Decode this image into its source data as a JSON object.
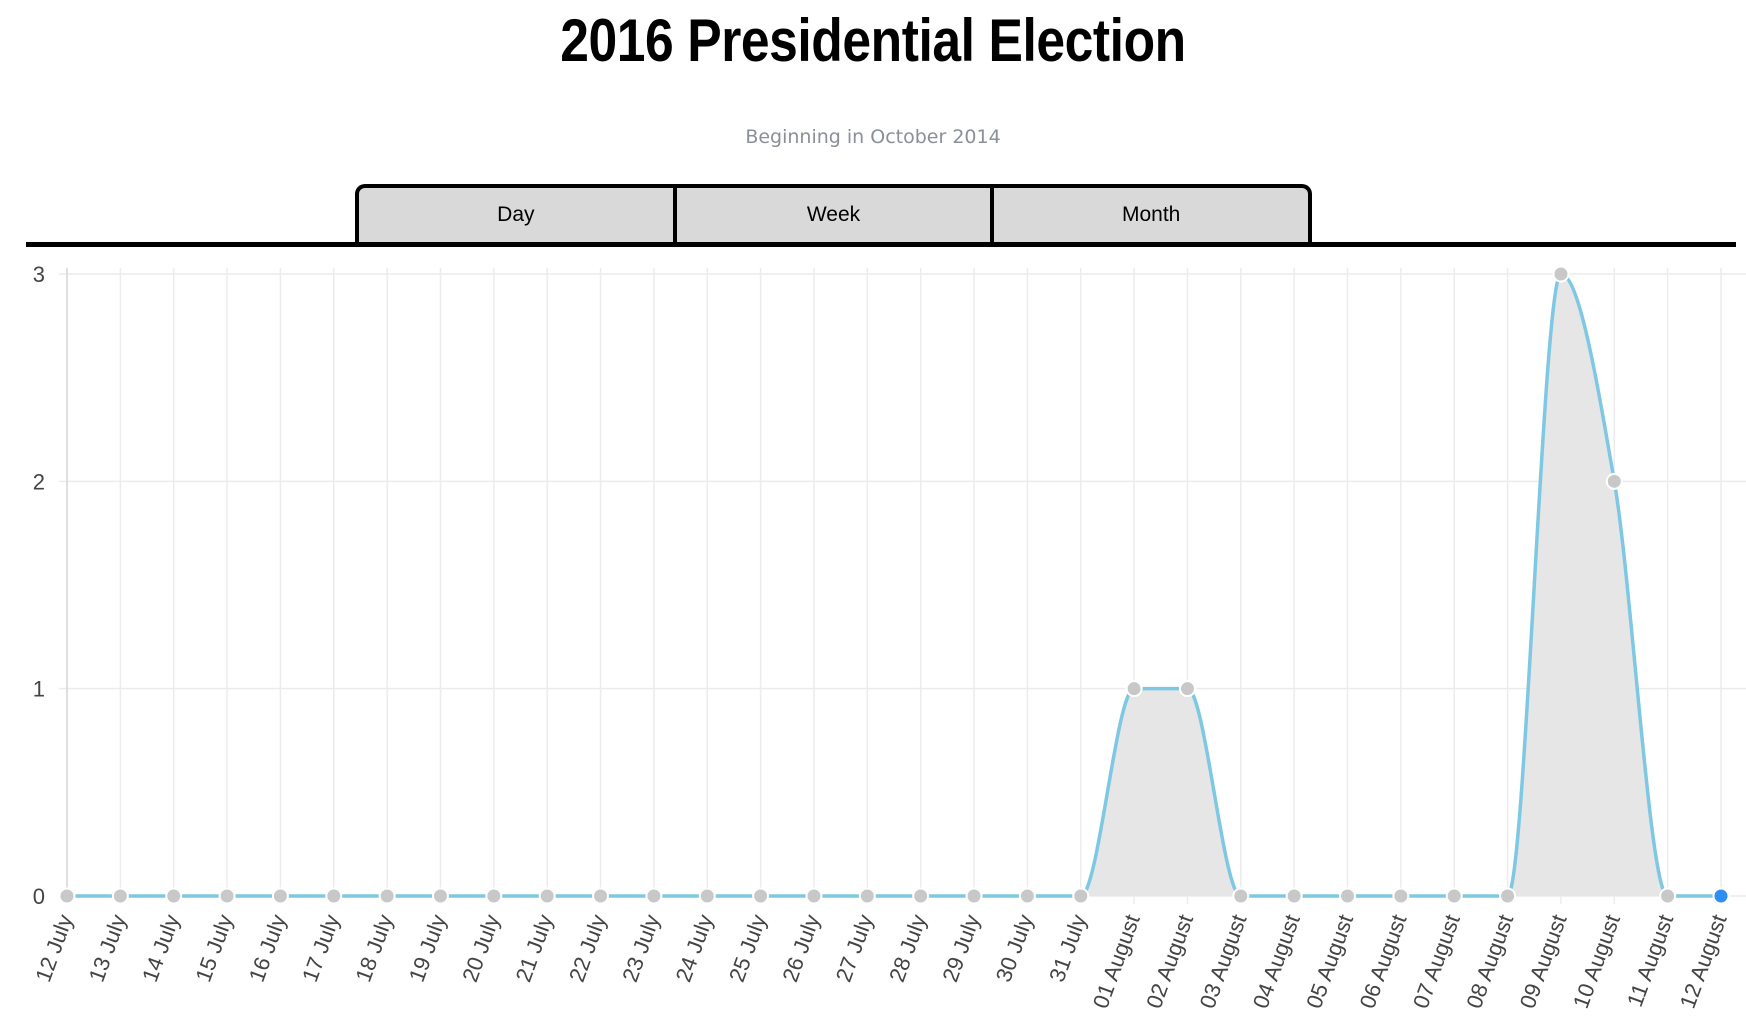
{
  "header": {
    "title": "2016 Presidential Election",
    "subtitle": "Beginning in October 2014"
  },
  "tabs": [
    {
      "label": "Day"
    },
    {
      "label": "Week"
    },
    {
      "label": "Month"
    }
  ],
  "colors": {
    "line": "#7ec8e3",
    "fill": "#e6e6e6",
    "point": "#c8c8c8",
    "highlight_point": "#2f8ef4",
    "grid": "#ececec"
  },
  "chart_data": {
    "type": "area",
    "title": "",
    "xlabel": "",
    "ylabel": "",
    "categories": [
      "12 July",
      "13 July",
      "14 July",
      "15 July",
      "16 July",
      "17 July",
      "18 July",
      "19 July",
      "20 July",
      "21 July",
      "22 July",
      "23 July",
      "24 July",
      "25 July",
      "26 July",
      "27 July",
      "28 July",
      "29 July",
      "30 July",
      "31 July",
      "01 August",
      "02 August",
      "03 August",
      "04 August",
      "05 August",
      "06 August",
      "07 August",
      "08 August",
      "09 August",
      "10 August",
      "11 August",
      "12 August"
    ],
    "series": [
      {
        "values": [
          0,
          0,
          0,
          0,
          0,
          0,
          0,
          0,
          0,
          0,
          0,
          0,
          0,
          0,
          0,
          0,
          0,
          0,
          0,
          0,
          1,
          1,
          0,
          0,
          0,
          0,
          0,
          0,
          3,
          2,
          0,
          0
        ]
      }
    ],
    "ylim": [
      0,
      3
    ],
    "yticks": [
      0,
      1,
      2,
      3
    ],
    "grid": true,
    "legend": "none"
  }
}
